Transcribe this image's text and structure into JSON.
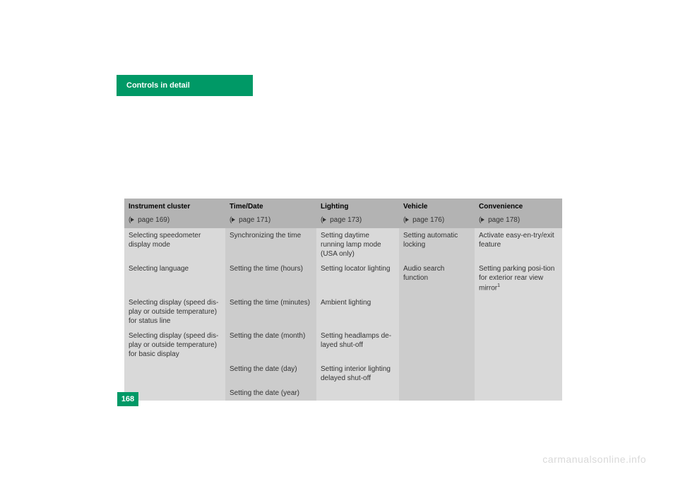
{
  "header": {
    "title": "Controls in detail"
  },
  "page_number": "168",
  "watermark": "carmanualsonline.info",
  "columns": [
    {
      "title": "Instrument cluster",
      "ref": "page 169"
    },
    {
      "title": "Time/Date",
      "ref": "page 171"
    },
    {
      "title": "Lighting",
      "ref": "page 173"
    },
    {
      "title": "Vehicle",
      "ref": "page 176"
    },
    {
      "title": "Convenience",
      "ref": "page 178"
    }
  ],
  "rows": [
    [
      "Selecting speedometer display mode",
      "Synchronizing the time",
      "Setting daytime running lamp mode (USA only)",
      "Setting automatic locking",
      "Activate easy-en-try/exit feature"
    ],
    [
      "Selecting language",
      "Setting the time (hours)",
      "Setting locator lighting",
      "Audio search function",
      "Setting parking posi-tion for exterior rear view mirror"
    ],
    [
      "Selecting display (speed dis-play or outside temperature) for status line",
      "Setting the time (minutes)",
      "Ambient lighting",
      "",
      ""
    ],
    [
      "Selecting display (speed dis-play or outside temperature) for basic display",
      "Setting the date (month)",
      "Setting headlamps de-layed shut-off",
      "",
      ""
    ],
    [
      "",
      "Setting the date (day)",
      "Setting interior lighting delayed shut-off",
      "",
      ""
    ],
    [
      "",
      "Setting the date (year)",
      "",
      "",
      ""
    ]
  ],
  "footnote_marker": "1",
  "colors": {
    "accent": "#009966",
    "header_bg": "#b3b3b3",
    "light_cell": "#d9d9d9",
    "dark_cell": "#cccccc",
    "watermark": "#d9d9d9",
    "text": "#333333"
  }
}
